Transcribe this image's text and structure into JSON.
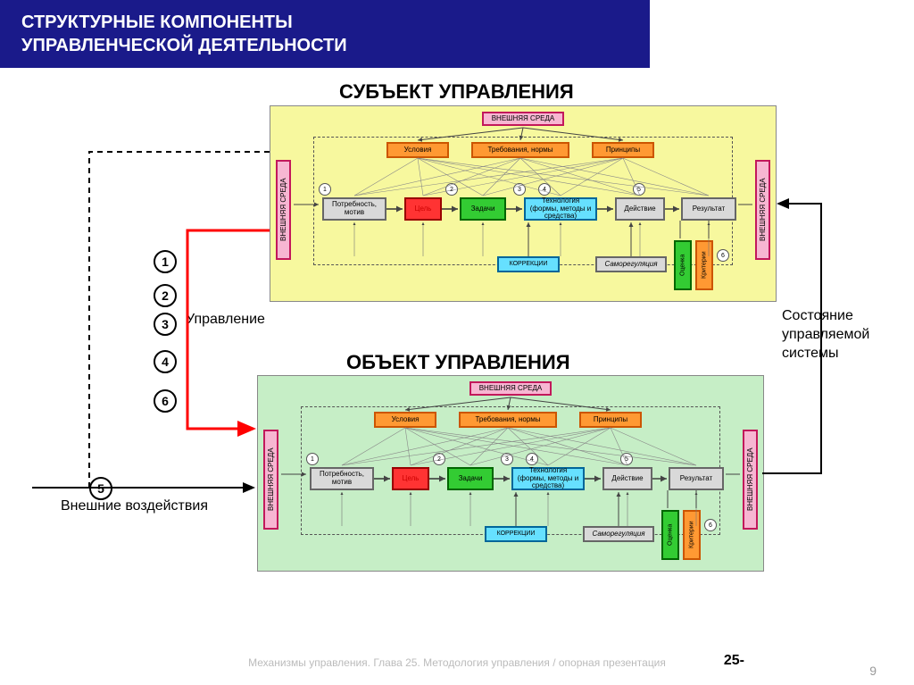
{
  "header": {
    "line1": "СТРУКТУРНЫЕ КОМПОНЕНТЫ",
    "line2": "УПРАВЛЕНЧЕСКОЙ ДЕЯТЕЛЬНОСТИ"
  },
  "titles": {
    "subject": "СУБЪЕКТ УПРАВЛЕНИЯ",
    "object": "ОБЪЕКТ УПРАВЛЕНИЯ"
  },
  "labels": {
    "upravlenie": "Управление",
    "sostoyanie": "Состояние управляемой системы",
    "vneshnie": "Внешние воздействия"
  },
  "list_numbers": [
    "1",
    "2",
    "3",
    "4",
    "6",
    "5"
  ],
  "panel": {
    "env": "ВНЕШНЯЯ СРЕДА",
    "env_left": "ВНЕШНЯЯ СРЕДА",
    "env_right": "ВНЕШНЯЯ СРЕДА",
    "row1": {
      "usloviya": "Условия",
      "treb": "Требования, нормы",
      "prin": "Принципы"
    },
    "row2": {
      "potreb": "Потребность, мотив",
      "cel": "Цель",
      "zadachi": "Задачи",
      "tech": "Технология (формы, методы и средства)",
      "deist": "Действие",
      "rez": "Результат"
    },
    "row3": {
      "korr": "КОРРЕКЦИИ",
      "samoreg": "Саморегуляция",
      "ocenka": "Оценка",
      "kriterii": "Критерии"
    },
    "nums": [
      "1",
      "2",
      "3",
      "4",
      "5",
      "6"
    ]
  },
  "footer": "Механизмы управления. Глава 25. Методология управления / опорная презентация",
  "page_prefix": "25-",
  "page_num": "9",
  "colors": {
    "header_bg": "#1a1a8a",
    "panel_subject": "#f7f89e",
    "panel_object": "#c6eec6",
    "pink": "#f7b6d2",
    "orange": "#ff9933",
    "grey": "#d9d9d9",
    "green": "#33cc33",
    "cyan": "#66e0ff",
    "yellow": "#ffff66",
    "red": "#ff3333",
    "red_arrow": "#ff0000"
  }
}
